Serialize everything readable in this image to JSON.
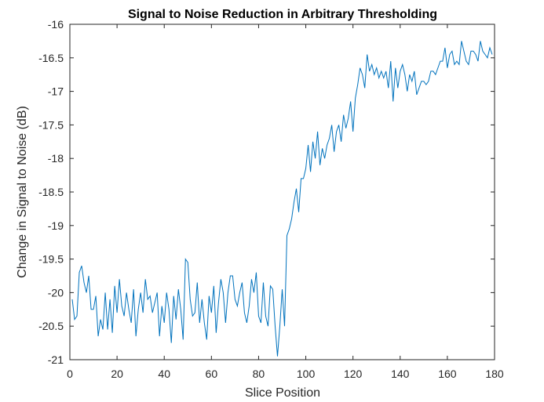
{
  "chart_data": {
    "type": "line",
    "title": "Signal to Noise Reduction in Arbitrary Thresholding",
    "xlabel": "Slice Position",
    "ylabel": "Change in Signal to Noise (dB)",
    "xlim": [
      0,
      180
    ],
    "ylim": [
      -21,
      -16
    ],
    "xticks": [
      0,
      20,
      40,
      60,
      80,
      100,
      120,
      140,
      160,
      180
    ],
    "yticks": [
      -16,
      -16.5,
      -17,
      -17.5,
      -18,
      -18.5,
      -19,
      -19.5,
      -20,
      -20.5,
      -21
    ],
    "xtick_labels": [
      "0",
      "20",
      "40",
      "60",
      "80",
      "100",
      "120",
      "140",
      "160",
      "180"
    ],
    "ytick_labels": [
      "-16",
      "-16.5",
      "-17",
      "-17.5",
      "-18",
      "-18.5",
      "-19",
      "-19.5",
      "-20",
      "-20.5",
      "-21"
    ],
    "grid": false,
    "line_color": "#0072BD",
    "x_start": 1,
    "x_step": 1,
    "values": [
      -20.1,
      -20.4,
      -20.35,
      -19.7,
      -19.6,
      -19.85,
      -20.0,
      -19.75,
      -20.25,
      -20.25,
      -20.05,
      -20.65,
      -20.4,
      -20.55,
      -20.0,
      -20.55,
      -20.1,
      -20.6,
      -19.9,
      -20.3,
      -19.8,
      -20.2,
      -20.35,
      -20.0,
      -20.25,
      -20.45,
      -19.95,
      -20.65,
      -20.25,
      -20.0,
      -20.3,
      -19.8,
      -20.1,
      -20.05,
      -20.3,
      -20.15,
      -20.0,
      -20.65,
      -20.2,
      -20.45,
      -20.0,
      -20.25,
      -20.75,
      -20.05,
      -20.4,
      -19.95,
      -20.25,
      -20.7,
      -19.5,
      -19.55,
      -20.1,
      -20.35,
      -20.3,
      -19.85,
      -20.45,
      -20.1,
      -20.45,
      -20.7,
      -20.05,
      -20.3,
      -19.9,
      -20.6,
      -20.15,
      -19.8,
      -20.0,
      -20.45,
      -20.0,
      -19.75,
      -19.75,
      -20.1,
      -20.2,
      -20.0,
      -19.85,
      -20.3,
      -20.45,
      -20.2,
      -19.8,
      -20.0,
      -19.7,
      -20.35,
      -20.45,
      -19.85,
      -20.35,
      -20.5,
      -19.9,
      -19.95,
      -20.5,
      -20.95,
      -20.5,
      -19.95,
      -20.5,
      -19.15,
      -19.05,
      -18.9,
      -18.65,
      -18.45,
      -18.8,
      -18.3,
      -18.3,
      -18.15,
      -17.8,
      -18.2,
      -17.75,
      -18.0,
      -17.6,
      -18.1,
      -17.85,
      -18.0,
      -17.8,
      -17.7,
      -17.5,
      -17.9,
      -17.6,
      -17.5,
      -17.75,
      -17.35,
      -17.55,
      -17.4,
      -17.15,
      -17.6,
      -17.1,
      -16.9,
      -16.65,
      -16.75,
      -16.95,
      -16.45,
      -16.7,
      -16.6,
      -16.75,
      -16.65,
      -16.8,
      -16.7,
      -16.8,
      -16.7,
      -16.95,
      -16.55,
      -17.15,
      -16.65,
      -16.95,
      -16.7,
      -16.6,
      -16.75,
      -17.0,
      -16.75,
      -16.85,
      -16.7,
      -17.05,
      -16.95,
      -16.85,
      -16.85,
      -16.9,
      -16.85,
      -16.7,
      -16.7,
      -16.75,
      -16.65,
      -16.55,
      -16.55,
      -16.35,
      -16.65,
      -16.45,
      -16.4,
      -16.6,
      -16.55,
      -16.6,
      -16.25,
      -16.4,
      -16.55,
      -16.6,
      -16.4,
      -16.4,
      -16.45,
      -16.55,
      -16.25,
      -16.4,
      -16.45,
      -16.5,
      -16.35,
      -16.45
    ]
  }
}
